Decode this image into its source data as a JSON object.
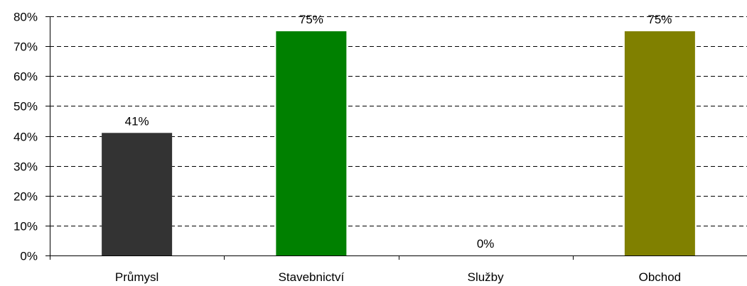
{
  "chart_data": {
    "type": "bar",
    "categories": [
      "Průmysl",
      "Stavebnictví",
      "Služby",
      "Obchod"
    ],
    "values": [
      41,
      75,
      0,
      75
    ],
    "data_labels": [
      "41%",
      "75%",
      "0%",
      "75%"
    ],
    "bar_colors": [
      "#333333",
      "#008000",
      "#333333",
      "#808000"
    ],
    "ylim": [
      0,
      80
    ],
    "yticks": [
      0,
      10,
      20,
      30,
      40,
      50,
      60,
      70,
      80
    ],
    "ytick_labels": [
      "0%",
      "10%",
      "20%",
      "30%",
      "40%",
      "50%",
      "60%",
      "70%",
      "80%"
    ],
    "grid": true,
    "grid_style": "dashed",
    "legend": "none",
    "title": "",
    "xlabel": "",
    "ylabel": ""
  }
}
